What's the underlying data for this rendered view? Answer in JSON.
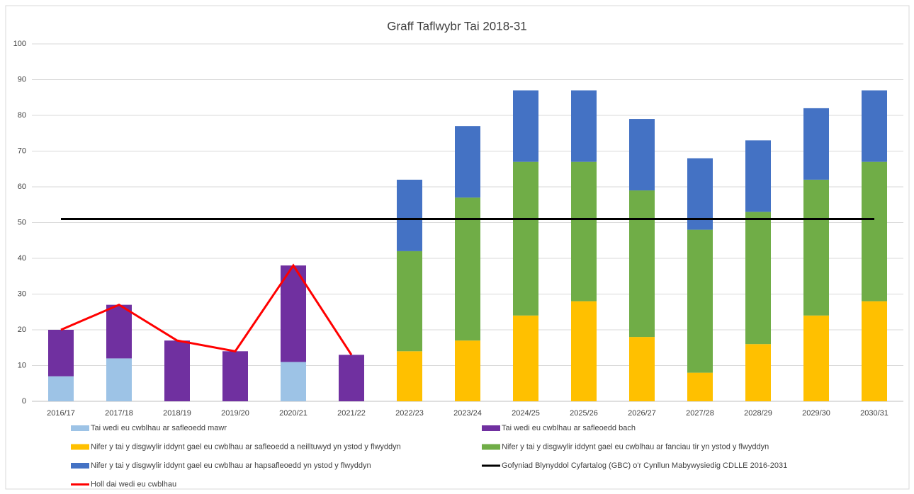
{
  "chart_data": {
    "type": "bar",
    "stacked": true,
    "title": "Graff Taflwybr Tai 2018-31",
    "categories": [
      "2016/17",
      "2017/18",
      "2018/19",
      "2019/20",
      "2020/21",
      "2021/22",
      "2022/23",
      "2023/24",
      "2024/25",
      "2025/26",
      "2026/27",
      "2027/28",
      "2028/29",
      "2029/30",
      "2030/31"
    ],
    "series": [
      {
        "name": "Tai wedi eu cwblhau ar safleoedd mawr",
        "type": "bar",
        "color": "#9dc3e6",
        "values": [
          7,
          12,
          null,
          null,
          11,
          null,
          null,
          null,
          null,
          null,
          null,
          null,
          null,
          null,
          null
        ]
      },
      {
        "name": "Tai wedi eu cwblhau ar safleoedd bach",
        "type": "bar",
        "color": "#7030a0",
        "values": [
          13,
          15,
          17,
          14,
          27,
          13,
          null,
          null,
          null,
          null,
          null,
          null,
          null,
          null,
          null
        ]
      },
      {
        "name": "Nifer y tai y disgwylir iddynt gael eu cwblhau ar safleoedd a neilltuwyd yn ystod y flwyddyn",
        "type": "bar",
        "color": "#ffc000",
        "values": [
          null,
          null,
          null,
          null,
          null,
          null,
          14,
          17,
          24,
          28,
          18,
          8,
          16,
          24,
          28
        ]
      },
      {
        "name": "Nifer y tai y disgwylir iddynt gael eu cwblhau ar fanciau tir yn ystod y flwyddyn",
        "type": "bar",
        "color": "#70ad47",
        "values": [
          null,
          null,
          null,
          null,
          null,
          null,
          28,
          40,
          43,
          39,
          41,
          40,
          37,
          38,
          39
        ]
      },
      {
        "name": "Nifer y tai y disgwylir iddynt gael eu cwblhau ar hapsafleoedd yn ystod y flwyddyn",
        "type": "bar",
        "color": "#4472c4",
        "values": [
          null,
          null,
          null,
          null,
          null,
          null,
          20,
          20,
          20,
          20,
          20,
          20,
          20,
          20,
          20
        ]
      },
      {
        "name": "Gofyniad Blynyddol Cyfartalog (GBC) o'r Cynllun Mabywysiedig CDLLE 2016-2031",
        "type": "line",
        "color": "#000000",
        "values": [
          51,
          51,
          51,
          51,
          51,
          51,
          51,
          51,
          51,
          51,
          51,
          51,
          51,
          51,
          51
        ]
      },
      {
        "name": "Holl dai wedi eu cwblhau",
        "type": "line",
        "color": "#ff0000",
        "values": [
          20,
          27,
          17,
          14,
          38,
          13,
          null,
          null,
          null,
          null,
          null,
          null,
          null,
          null,
          null
        ]
      }
    ],
    "ylim": [
      0,
      100
    ],
    "yticks": [
      0,
      10,
      20,
      30,
      40,
      50,
      60,
      70,
      80,
      90,
      100
    ],
    "grid": true
  }
}
